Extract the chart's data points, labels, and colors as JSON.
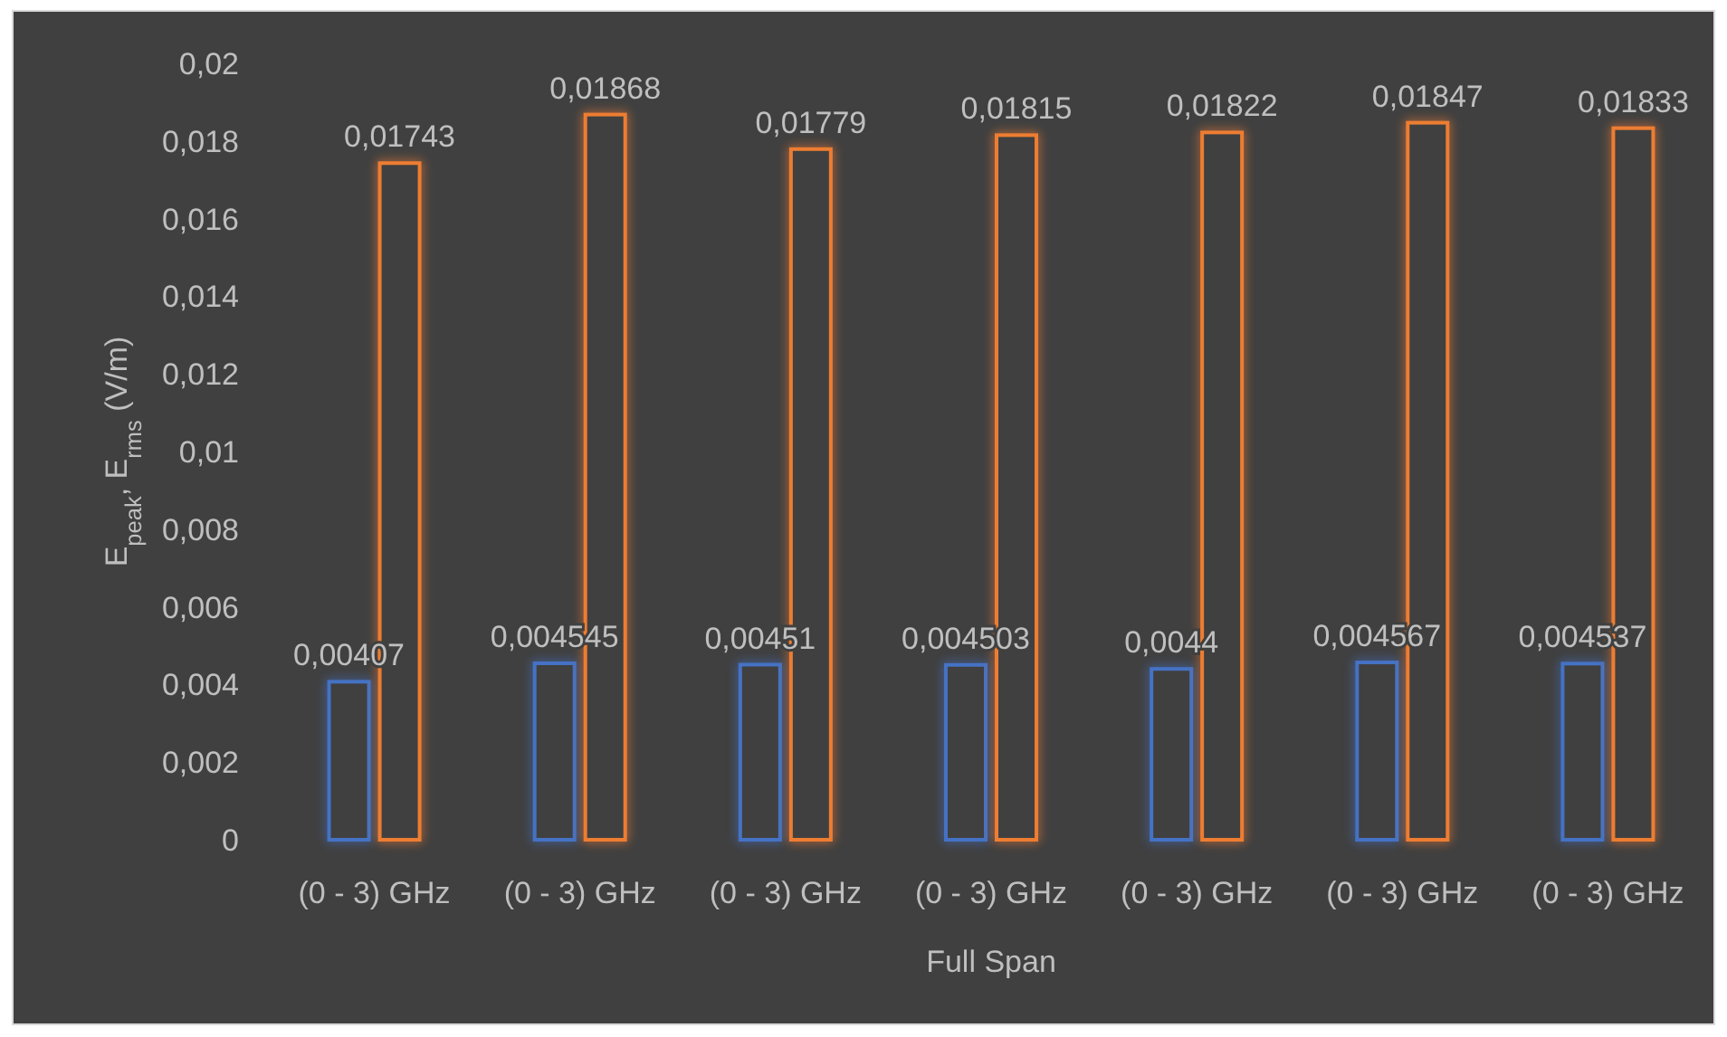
{
  "chart_data": {
    "type": "bar",
    "xlabel": "Full Span",
    "ylabel": "E$_{peak}$, E$_{rms}$ (V/m)",
    "categories": [
      "(0 - 3) GHz",
      "(0 - 3) GHz",
      "(0 - 3) GHz",
      "(0 - 3) GHz",
      "(0 - 3) GHz",
      "(0 - 3) GHz",
      "(0 - 3) GHz"
    ],
    "series": [
      {
        "color": "#4472c4",
        "values": [
          0.00407,
          0.004545,
          0.00451,
          0.004503,
          0.0044,
          0.004567,
          0.004537
        ],
        "value_labels": [
          "0,00407",
          "0,004545",
          "0,00451",
          "0,004503",
          "0,0044",
          "0,004567",
          "0,004537"
        ]
      },
      {
        "color": "#ed7d31",
        "values": [
          0.01743,
          0.01868,
          0.01779,
          0.01815,
          0.01822,
          0.01847,
          0.01833
        ],
        "value_labels": [
          "0,01743",
          "0,01868",
          "0,01779",
          "0,01815",
          "0,01822",
          "0,01847",
          "0,01833"
        ]
      }
    ],
    "ylim": [
      0,
      0.02
    ],
    "yticks": [
      0,
      {
        "value": 0.002,
        "label": "0,002"
      },
      {
        "value": 0.004,
        "label": "0,004"
      },
      {
        "value": 0.006,
        "label": "0,006"
      },
      {
        "value": 0.008,
        "label": "0,008"
      },
      {
        "value": 0.01,
        "label": "0,01"
      },
      {
        "value": 0.012,
        "label": "0,012"
      },
      {
        "value": 0.014,
        "label": "0,014"
      },
      {
        "value": 0.016,
        "label": "0,016"
      },
      {
        "value": 0.018,
        "label": "0,018"
      },
      {
        "value": 0.02,
        "label": "0,02"
      }
    ],
    "grid": false
  }
}
